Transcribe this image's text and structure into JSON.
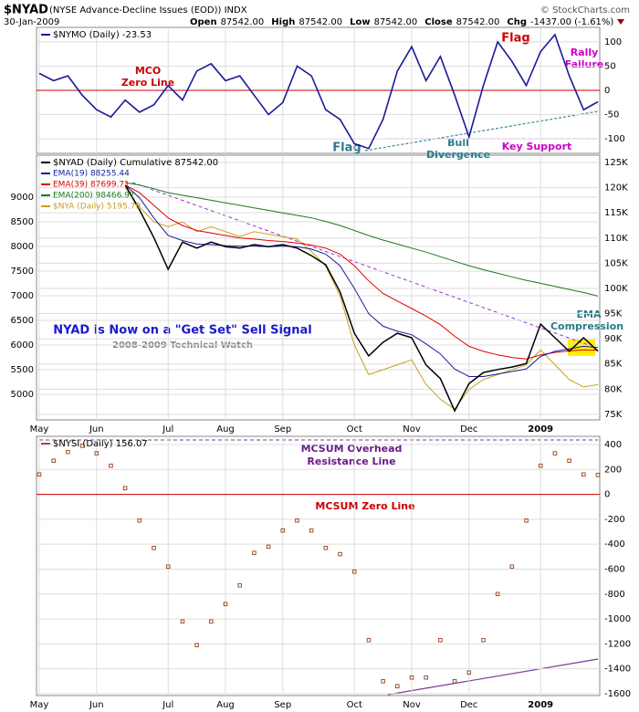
{
  "header": {
    "symbol": "$NYAD",
    "description": "(NYSE Advance-Decline Issues (EOD)) INDX",
    "date": "30-Jan-2009",
    "credit": "© StockCharts.com",
    "quote": [
      {
        "label": "Open",
        "value": "87542.00"
      },
      {
        "label": "High",
        "value": "87542.00"
      },
      {
        "label": "Low",
        "value": "87542.00"
      },
      {
        "label": "Close",
        "value": "87542.00"
      },
      {
        "label": "Chg",
        "value": "-1437.00 (-1.61%)"
      }
    ]
  },
  "chart_data": [
    {
      "type": "line",
      "yaxis_side": "right",
      "ylim": [
        -130,
        130
      ],
      "yticks": [
        100,
        50,
        0,
        -50,
        -100
      ],
      "grid": true,
      "zero_line": "#cc0000",
      "series": [
        {
          "name": "$NYMO (Daily) -23.53",
          "color": "#1a1a99",
          "values": [
            35,
            20,
            30,
            -10,
            -40,
            -55,
            -20,
            -45,
            -30,
            10,
            -20,
            40,
            55,
            20,
            30,
            -10,
            -50,
            -25,
            50,
            30,
            -40,
            -60,
            -110,
            -120,
            -60,
            40,
            90,
            20,
            70,
            -10,
            -96,
            10,
            100,
            60,
            10,
            80,
            115,
            30,
            -40,
            -23.53
          ]
        }
      ],
      "annotations": [
        "Flag",
        "Rally",
        "Failure",
        "MCO",
        "Zero Line",
        "Flag",
        "Bull",
        "Divergence",
        "Key Support"
      ]
    },
    {
      "type": "line",
      "yaxis_side": "left",
      "ylim": [
        4481,
        9852
      ],
      "yticks": [
        5000,
        5500,
        6000,
        6500,
        7000,
        7500,
        8000,
        8500,
        9000
      ],
      "y2lim": [
        73900,
        126450
      ],
      "y2ticks": [
        {
          "value": 75000,
          "label": "75K"
        },
        {
          "value": 80000,
          "label": "80K"
        },
        {
          "value": 85000,
          "label": "85K"
        },
        {
          "value": 90000,
          "label": "90K"
        },
        {
          "value": 95000,
          "label": "95K"
        },
        {
          "value": 100000,
          "label": "100K"
        },
        {
          "value": 105000,
          "label": "105K"
        },
        {
          "value": 110000,
          "label": "110K"
        },
        {
          "value": 115000,
          "label": "115K"
        },
        {
          "value": 120000,
          "label": "120K"
        },
        {
          "value": 125000,
          "label": "125K"
        }
      ],
      "grid": true,
      "categories": [
        "May",
        null,
        null,
        null,
        "Jun",
        null,
        null,
        null,
        null,
        "Jul",
        null,
        null,
        null,
        "Aug",
        null,
        null,
        null,
        "Sep",
        null,
        null,
        null,
        null,
        "Oct",
        null,
        null,
        null,
        "Nov",
        null,
        null,
        null,
        "Dec",
        null,
        null,
        null,
        null,
        "2009",
        null,
        null,
        null,
        null
      ],
      "series": [
        {
          "name": "$NYAD (Daily) Cumulative 87542.00",
          "color": "#000000",
          "axis": "y2",
          "width": 1.5,
          "values": [
            null,
            null,
            null,
            null,
            null,
            null,
            120500,
            115600,
            110100,
            103800,
            109200,
            108000,
            109200,
            108300,
            108000,
            108700,
            108300,
            108700,
            108000,
            106500,
            104700,
            99300,
            91100,
            86600,
            89300,
            91100,
            90200,
            84800,
            82100,
            75700,
            81100,
            83300,
            83900,
            84400,
            85100,
            92900,
            90200,
            87500,
            90200,
            87542
          ]
        },
        {
          "name": "EMA(19) 88255.44",
          "color": "#1a1aa0",
          "axis": "y2",
          "width": 1,
          "values": [
            null,
            null,
            null,
            null,
            null,
            null,
            120500,
            118000,
            114000,
            110500,
            109500,
            108800,
            108700,
            108500,
            108400,
            108400,
            108300,
            108400,
            108300,
            107800,
            106800,
            104500,
            100000,
            95000,
            92500,
            91500,
            90800,
            89000,
            87000,
            84000,
            82500,
            82500,
            83000,
            83500,
            84000,
            86500,
            87500,
            88000,
            88500,
            88255.44
          ]
        },
        {
          "name": "EMA(39) 87699.71",
          "color": "#e00000",
          "axis": "y2",
          "width": 1,
          "values": [
            null,
            null,
            null,
            null,
            null,
            null,
            120500,
            119000,
            116500,
            114000,
            112500,
            111500,
            111000,
            110500,
            110000,
            109800,
            109500,
            109300,
            109000,
            108600,
            108000,
            106800,
            104500,
            101500,
            99000,
            97500,
            96000,
            94500,
            92800,
            90500,
            88500,
            87500,
            86800,
            86300,
            86000,
            86800,
            87300,
            87600,
            87800,
            87699.71
          ]
        },
        {
          "name": "EMA(200) 98466.97",
          "color": "#1a7a1a",
          "axis": "y2",
          "width": 1,
          "values": [
            null,
            null,
            null,
            null,
            null,
            null,
            121000,
            120500,
            119800,
            119000,
            118500,
            118000,
            117500,
            117000,
            116500,
            116000,
            115500,
            115000,
            114500,
            114000,
            113300,
            112500,
            111500,
            110500,
            109600,
            108800,
            108000,
            107200,
            106300,
            105400,
            104500,
            103700,
            103000,
            102300,
            101600,
            101000,
            100400,
            99800,
            99200,
            98466.97
          ]
        },
        {
          "name": "$NYA (Daily) 5195.79",
          "color": "#c8a020",
          "width": 1,
          "values": [
            null,
            null,
            null,
            null,
            null,
            null,
            9200,
            8800,
            8500,
            8400,
            8500,
            8300,
            8400,
            8300,
            8200,
            8300,
            8250,
            8200,
            8150,
            7900,
            7600,
            7000,
            6000,
            5400,
            5500,
            5600,
            5700,
            5200,
            4900,
            4700,
            5100,
            5300,
            5400,
            5500,
            5600,
            5900,
            5600,
            5300,
            5150,
            5195.79
          ]
        }
      ],
      "annotations": [
        "NYAD is Now on a \"Get Set\" Sell Signal",
        "2008-2009 Technical Watch",
        "EMA",
        "Compression"
      ]
    },
    {
      "type": "dot",
      "yaxis_side": "right",
      "ylim": [
        -1615,
        466
      ],
      "yticks": [
        400,
        200,
        0,
        -200,
        -400,
        -600,
        -800,
        -1000,
        -1200,
        -1400,
        -1600
      ],
      "grid": true,
      "zero_line": "#cc0000",
      "categories": [
        "May",
        null,
        null,
        null,
        "Jun",
        null,
        null,
        null,
        null,
        "Jul",
        null,
        null,
        null,
        "Aug",
        null,
        null,
        null,
        "Sep",
        null,
        null,
        null,
        null,
        "Oct",
        null,
        null,
        null,
        "Nov",
        null,
        null,
        null,
        "Dec",
        null,
        null,
        null,
        null,
        "2009",
        null,
        null,
        null,
        null
      ],
      "series": [
        {
          "name": "$NYSI (Daily) 156.07",
          "color": "#a0522d",
          "values": [
            160,
            270,
            340,
            390,
            330,
            230,
            50,
            -210,
            -430,
            -580,
            -1020,
            -1210,
            -1020,
            -880,
            -730,
            -470,
            -420,
            -290,
            -210,
            -290,
            -430,
            -480,
            -620,
            -1170,
            -1500,
            -1540,
            -1470,
            -1470,
            -1170,
            -1500,
            -1430,
            -1170,
            -800,
            -580,
            -210,
            230,
            330,
            270,
            160,
            156.07
          ]
        }
      ],
      "annotations": [
        "MCSUM Overhead",
        "Resistance Line",
        "MCSUM Zero Line"
      ]
    }
  ]
}
